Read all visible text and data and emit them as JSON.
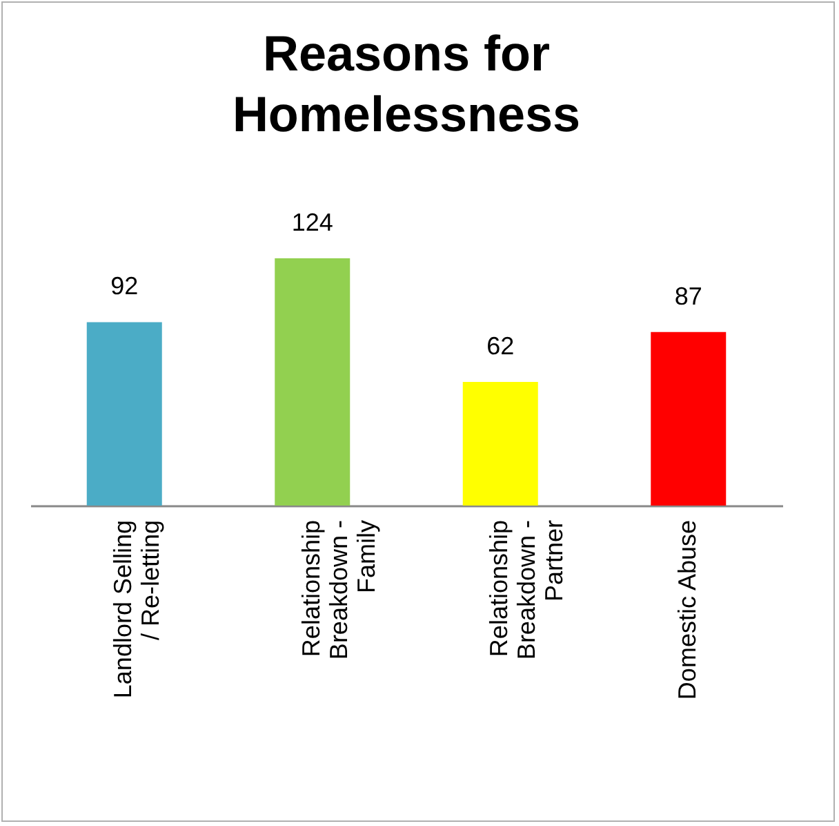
{
  "chart_data": {
    "type": "bar",
    "title": "Reasons for Homelessness",
    "categories": [
      "Landlord Selling / Re-letting",
      "Relationship Breakdown - Family",
      "Relationship Breakdown - Partner",
      "Domestic Abuse"
    ],
    "values": [
      92,
      124,
      62,
      87
    ],
    "colors": [
      "#4bacc6",
      "#92d050",
      "#ffff00",
      "#ff0000"
    ],
    "data_labels": true
  }
}
